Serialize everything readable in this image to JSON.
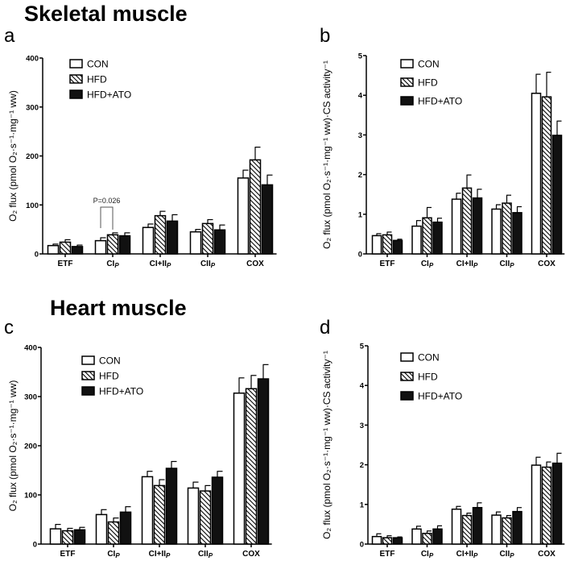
{
  "section_titles": [
    "Skeletal muscle",
    "Heart muscle"
  ],
  "legend": [
    "CON",
    "HFD",
    "HFD+ATO"
  ],
  "colors": {
    "axis": "#000000",
    "hfd_ato": "#111111",
    "con": "#ffffff"
  },
  "chart_data": [
    {
      "type": "bar",
      "panel": "a",
      "title": "Skeletal muscle",
      "ylabel": "O₂ flux (pmol O₂·s⁻¹·mg⁻¹ ww)",
      "ylim": [
        0,
        400
      ],
      "yticks": [
        0,
        100,
        200,
        300,
        400
      ],
      "categories": [
        {
          "label": "ETF",
          "sub": ""
        },
        {
          "label": "CI",
          "sub": "P"
        },
        {
          "label": "CI+II",
          "sub": "P"
        },
        {
          "label": "CII",
          "sub": "P"
        },
        {
          "label": "COX",
          "sub": ""
        }
      ],
      "series": [
        {
          "name": "CON",
          "values": [
            17,
            27,
            54,
            45,
            155
          ],
          "errors": [
            3,
            6,
            7,
            5,
            16
          ]
        },
        {
          "name": "HFD",
          "values": [
            24,
            39,
            78,
            62,
            192
          ],
          "errors": [
            5,
            4,
            9,
            8,
            26
          ]
        },
        {
          "name": "HFD+ATO",
          "values": [
            15,
            37,
            67,
            49,
            141
          ],
          "errors": [
            3,
            6,
            13,
            10,
            20
          ]
        }
      ],
      "annotation": "P=0.026"
    },
    {
      "type": "bar",
      "panel": "b",
      "ylabel": "O₂ flux (pmol O₂·s⁻¹·mg⁻¹ ww)·CS activity⁻¹",
      "ylim": [
        0,
        5
      ],
      "yticks": [
        0,
        1,
        2,
        3,
        4,
        5
      ],
      "categories": [
        {
          "label": "ETF",
          "sub": ""
        },
        {
          "label": "CI",
          "sub": "P"
        },
        {
          "label": "CI+II",
          "sub": "P"
        },
        {
          "label": "CII",
          "sub": "P"
        },
        {
          "label": "COX",
          "sub": ""
        }
      ],
      "series": [
        {
          "name": "CON",
          "values": [
            0.46,
            0.7,
            1.38,
            1.13,
            4.05
          ],
          "errors": [
            0.05,
            0.14,
            0.15,
            0.11,
            0.48
          ]
        },
        {
          "name": "HFD",
          "values": [
            0.48,
            0.91,
            1.66,
            1.28,
            3.96
          ],
          "errors": [
            0.07,
            0.26,
            0.33,
            0.2,
            0.62
          ]
        },
        {
          "name": "HFD+ATO",
          "values": [
            0.34,
            0.8,
            1.41,
            1.04,
            2.99
          ],
          "errors": [
            0.03,
            0.1,
            0.22,
            0.15,
            0.36
          ]
        }
      ]
    },
    {
      "type": "bar",
      "panel": "c",
      "title": "Heart muscle",
      "ylabel": "O₂ flux (pmol O₂·s⁻¹·mg⁻¹ ww)",
      "ylim": [
        0,
        400
      ],
      "yticks": [
        0,
        100,
        200,
        300,
        400
      ],
      "categories": [
        {
          "label": "ETF",
          "sub": ""
        },
        {
          "label": "CI",
          "sub": "P"
        },
        {
          "label": "CI+II",
          "sub": "P"
        },
        {
          "label": "CII",
          "sub": "P"
        },
        {
          "label": "COX",
          "sub": ""
        }
      ],
      "series": [
        {
          "name": "CON",
          "values": [
            31,
            60,
            137,
            114,
            307
          ],
          "errors": [
            9,
            10,
            11,
            12,
            31
          ]
        },
        {
          "name": "HFD",
          "values": [
            27,
            45,
            119,
            108,
            316
          ],
          "errors": [
            5,
            8,
            12,
            11,
            27
          ]
        },
        {
          "name": "HFD+ATO",
          "values": [
            29,
            65,
            154,
            136,
            336
          ],
          "errors": [
            5,
            11,
            14,
            12,
            29
          ]
        }
      ]
    },
    {
      "type": "bar",
      "panel": "d",
      "ylabel": "O₂ flux (pmol O₂·s⁻¹·mg⁻¹ ww)·CS activity⁻¹",
      "ylim": [
        0,
        5
      ],
      "yticks": [
        0,
        1,
        2,
        3,
        4,
        5
      ],
      "categories": [
        {
          "label": "ETF",
          "sub": ""
        },
        {
          "label": "CI",
          "sub": "P"
        },
        {
          "label": "CI+II",
          "sub": "P"
        },
        {
          "label": "CII",
          "sub": "P"
        },
        {
          "label": "COX",
          "sub": ""
        }
      ],
      "series": [
        {
          "name": "CON",
          "values": [
            0.19,
            0.38,
            0.88,
            0.73,
            1.99
          ],
          "errors": [
            0.07,
            0.07,
            0.07,
            0.08,
            0.2
          ]
        },
        {
          "name": "HFD",
          "values": [
            0.16,
            0.27,
            0.72,
            0.66,
            1.94
          ],
          "errors": [
            0.05,
            0.06,
            0.06,
            0.06,
            0.13
          ]
        },
        {
          "name": "HFD+ATO",
          "values": [
            0.16,
            0.38,
            0.92,
            0.82,
            2.04
          ],
          "errors": [
            0.02,
            0.08,
            0.12,
            0.1,
            0.25
          ]
        }
      ]
    }
  ]
}
